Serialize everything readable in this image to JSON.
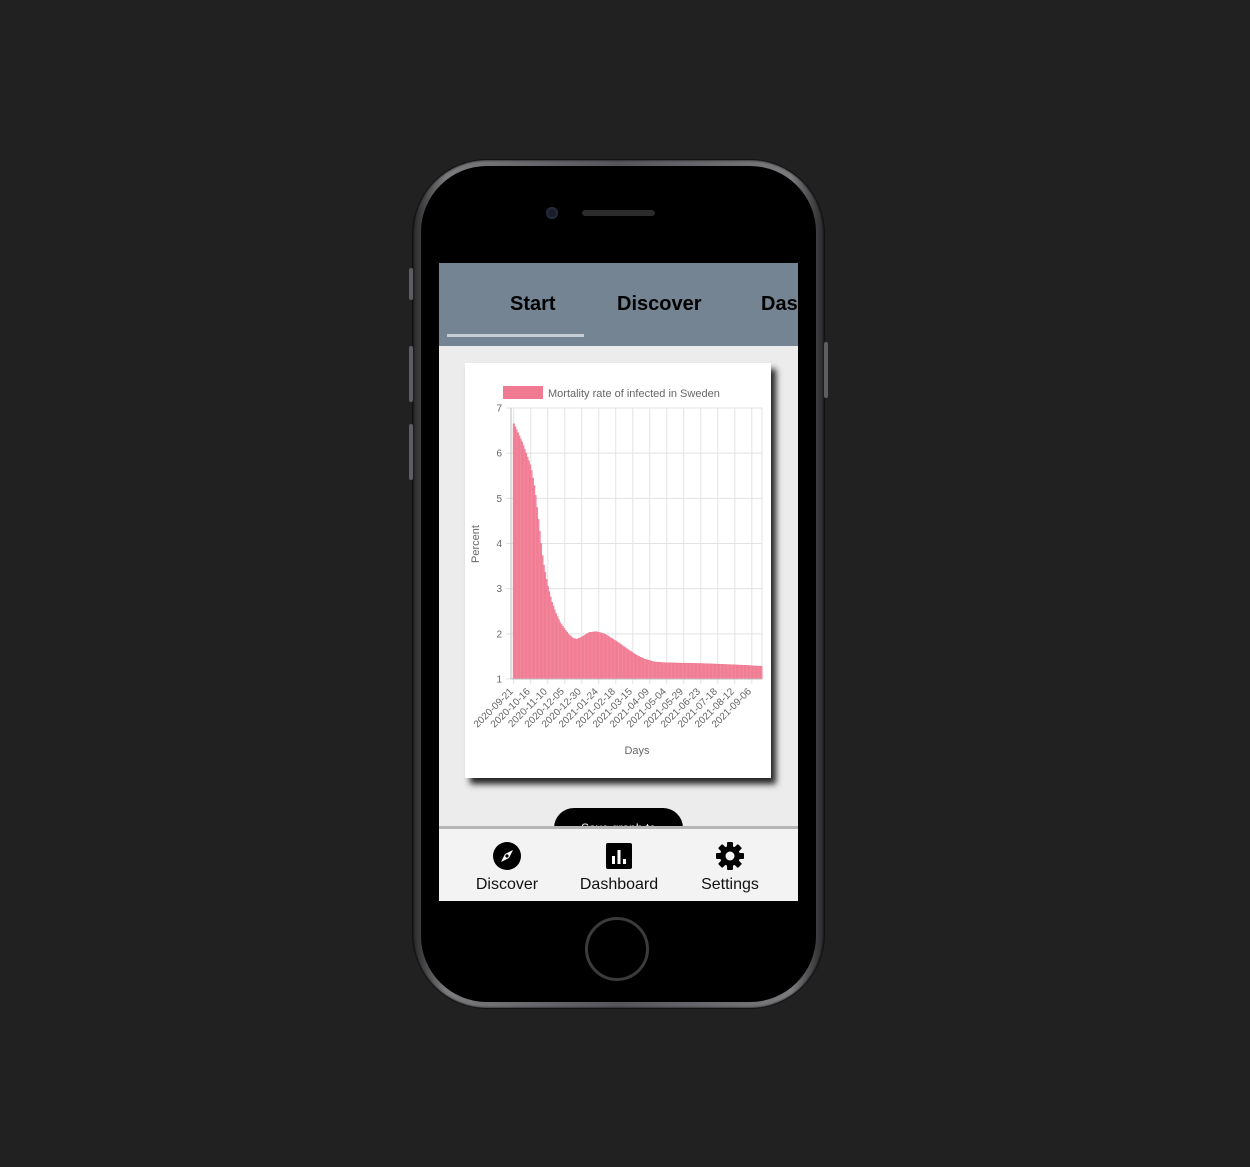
{
  "top_tabs": [
    {
      "label": "Start",
      "active": true
    },
    {
      "label": "Discover",
      "active": false
    },
    {
      "label": "Das",
      "active": false
    }
  ],
  "save_button_label": "Save graph to",
  "bottom_nav": [
    {
      "label": "Discover",
      "icon": "compass-icon"
    },
    {
      "label": "Dashboard",
      "icon": "bar-chart-icon"
    },
    {
      "label": "Settings",
      "icon": "gear-icon"
    }
  ],
  "colors": {
    "background": "#212121",
    "header": "#758493",
    "bar_fill": "#f2899e",
    "bar_stroke": "#ef6f89",
    "legend_swatch": "#f07a92"
  },
  "chart_data": {
    "type": "bar",
    "legend": [
      "Mortality rate of infected in Sweden"
    ],
    "legend_position": "top",
    "xlabel": "Days",
    "ylabel": "Percent",
    "ylim": [
      1,
      7
    ],
    "yticks": [
      1,
      2,
      3,
      4,
      5,
      6,
      7
    ],
    "grid": true,
    "xticks": [
      "2020-09-21",
      "2020-10-16",
      "2020-11-10",
      "2020-12-05",
      "2020-12-30",
      "2021-01-24",
      "2021-02-18",
      "2021-03-15",
      "2021-04-09",
      "2021-05-04",
      "2021-05-29",
      "2021-06-23",
      "2021-07-18",
      "2021-08-12",
      "2021-09-06"
    ],
    "series": [
      {
        "name": "Mortality rate of infected in Sweden",
        "points": [
          [
            "2020-09-21",
            6.65
          ],
          [
            "2020-09-27",
            6.45
          ],
          [
            "2020-10-03",
            6.25
          ],
          [
            "2020-10-09",
            6.0
          ],
          [
            "2020-10-16",
            5.7
          ],
          [
            "2020-10-22",
            5.2
          ],
          [
            "2020-10-28",
            4.4
          ],
          [
            "2020-11-03",
            3.6
          ],
          [
            "2020-11-10",
            3.05
          ],
          [
            "2020-11-16",
            2.7
          ],
          [
            "2020-11-22",
            2.45
          ],
          [
            "2020-11-28",
            2.25
          ],
          [
            "2020-12-05",
            2.1
          ],
          [
            "2020-12-11",
            1.98
          ],
          [
            "2020-12-17",
            1.9
          ],
          [
            "2020-12-23",
            1.88
          ],
          [
            "2020-12-30",
            1.93
          ],
          [
            "2021-01-10",
            2.03
          ],
          [
            "2021-01-20",
            2.05
          ],
          [
            "2021-02-01",
            2.0
          ],
          [
            "2021-02-12",
            1.9
          ],
          [
            "2021-02-24",
            1.78
          ],
          [
            "2021-03-08",
            1.65
          ],
          [
            "2021-03-20",
            1.53
          ],
          [
            "2021-04-01",
            1.44
          ],
          [
            "2021-04-15",
            1.38
          ],
          [
            "2021-05-01",
            1.36
          ],
          [
            "2021-06-01",
            1.35
          ],
          [
            "2021-07-01",
            1.34
          ],
          [
            "2021-08-01",
            1.32
          ],
          [
            "2021-09-01",
            1.3
          ],
          [
            "2021-09-20",
            1.28
          ]
        ]
      }
    ]
  }
}
